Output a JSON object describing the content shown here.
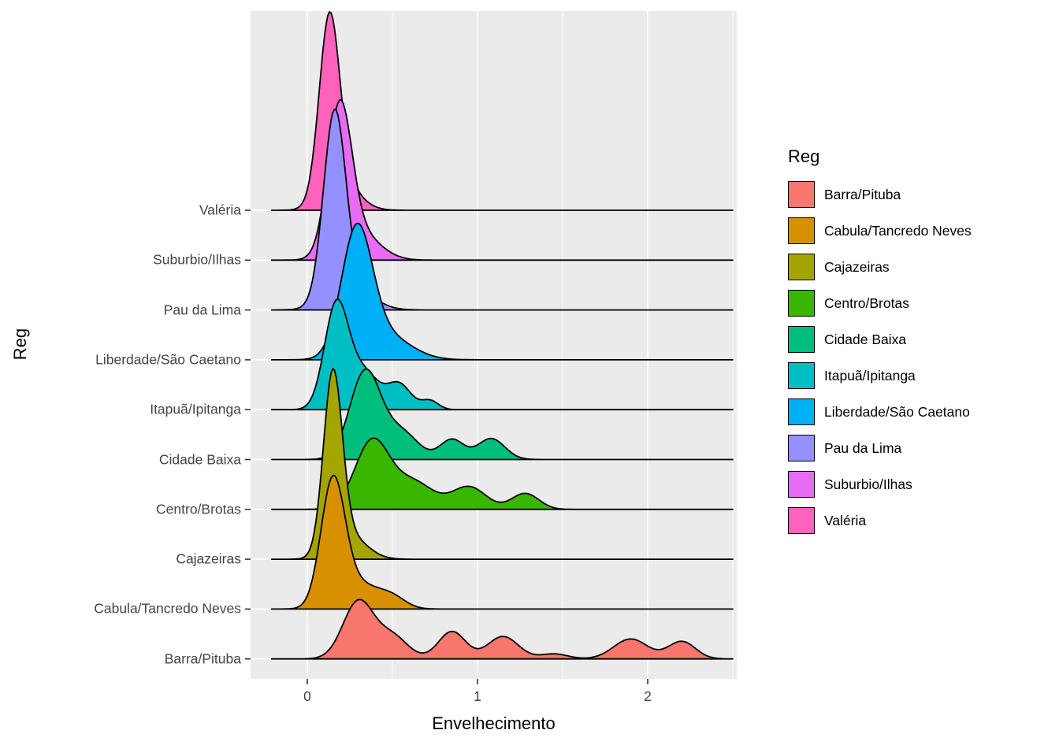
{
  "chart_data": {
    "type": "ridgeline",
    "title": "",
    "xlabel": "Envelhecimento",
    "ylabel": "Reg",
    "legend_title": "Reg",
    "x_tick_labels": [
      "0",
      "1",
      "2"
    ],
    "x_tick_values": [
      0,
      1,
      2
    ],
    "x_minor_gridlines": [
      -0.5,
      0.5,
      1.5,
      2.5
    ],
    "x_range": [
      -0.33,
      2.52
    ],
    "curve_x_start": -0.21,
    "curve_x_end": 2.5,
    "panel_bg": "#EBEBEB",
    "grid_color": "#FFFFFF",
    "outline_color": "#000000",
    "tick_color": "#333333",
    "rows": [
      {
        "label": "Valéria",
        "color": "#FF62BC",
        "density_mixture": [
          [
            0.13,
            0.06,
            3.55
          ],
          [
            0.2,
            0.1,
            0.55
          ]
        ]
      },
      {
        "label": "Suburbio/Ilhas",
        "color": "#E76BF3",
        "density_mixture": [
          [
            0.19,
            0.07,
            2.85
          ],
          [
            0.3,
            0.12,
            0.55
          ]
        ]
      },
      {
        "label": "Pau da Lima",
        "color": "#9590FF",
        "density_mixture": [
          [
            0.16,
            0.065,
            3.65
          ],
          [
            0.25,
            0.12,
            0.5
          ]
        ]
      },
      {
        "label": "Liberdade/São Caetano",
        "color": "#00B0F6",
        "density_mixture": [
          [
            0.29,
            0.09,
            2.45
          ],
          [
            0.45,
            0.15,
            0.5
          ]
        ]
      },
      {
        "label": "Itapuã/Ipitanga",
        "color": "#00BFC4",
        "density_mixture": [
          [
            0.17,
            0.07,
            2.05
          ],
          [
            0.33,
            0.09,
            0.75
          ],
          [
            0.54,
            0.07,
            0.5
          ],
          [
            0.72,
            0.05,
            0.18
          ]
        ]
      },
      {
        "label": "Cidade Baixa",
        "color": "#00BF7D",
        "density_mixture": [
          [
            0.34,
            0.09,
            1.75
          ],
          [
            0.55,
            0.1,
            0.55
          ],
          [
            0.85,
            0.07,
            0.4
          ],
          [
            1.08,
            0.08,
            0.42
          ]
        ]
      },
      {
        "label": "Centro/Brotas",
        "color": "#39B600",
        "density_mixture": [
          [
            0.38,
            0.1,
            1.35
          ],
          [
            0.62,
            0.12,
            0.55
          ],
          [
            0.95,
            0.1,
            0.45
          ],
          [
            1.28,
            0.08,
            0.32
          ]
        ]
      },
      {
        "label": "Cajazeiras",
        "color": "#A3A500",
        "density_mixture": [
          [
            0.15,
            0.055,
            3.55
          ],
          [
            0.25,
            0.1,
            0.45
          ]
        ]
      },
      {
        "label": "Cabula/Tancredo Neves",
        "color": "#D89000",
        "density_mixture": [
          [
            0.15,
            0.07,
            2.45
          ],
          [
            0.3,
            0.12,
            0.5
          ],
          [
            0.5,
            0.08,
            0.2
          ]
        ]
      },
      {
        "label": "Barra/Pituba",
        "color": "#F8766D",
        "density_mixture": [
          [
            0.3,
            0.09,
            1.15
          ],
          [
            0.5,
            0.09,
            0.45
          ],
          [
            0.85,
            0.08,
            0.55
          ],
          [
            1.15,
            0.09,
            0.45
          ],
          [
            1.45,
            0.08,
            0.1
          ],
          [
            1.9,
            0.1,
            0.4
          ],
          [
            2.2,
            0.08,
            0.35
          ]
        ]
      }
    ],
    "legend": [
      {
        "label": "Barra/Pituba",
        "color": "#F8766D"
      },
      {
        "label": "Cabula/Tancredo Neves",
        "color": "#D89000"
      },
      {
        "label": "Cajazeiras",
        "color": "#A3A500"
      },
      {
        "label": "Centro/Brotas",
        "color": "#39B600"
      },
      {
        "label": "Cidade Baixa",
        "color": "#00BF7D"
      },
      {
        "label": "Itapuã/Ipitanga",
        "color": "#00BFC4"
      },
      {
        "label": "Liberdade/São Caetano",
        "color": "#00B0F6"
      },
      {
        "label": "Pau da Lima",
        "color": "#9590FF"
      },
      {
        "label": "Suburbio/Ilhas",
        "color": "#E76BF3"
      },
      {
        "label": "Valéria",
        "color": "#FF62BC"
      }
    ]
  }
}
